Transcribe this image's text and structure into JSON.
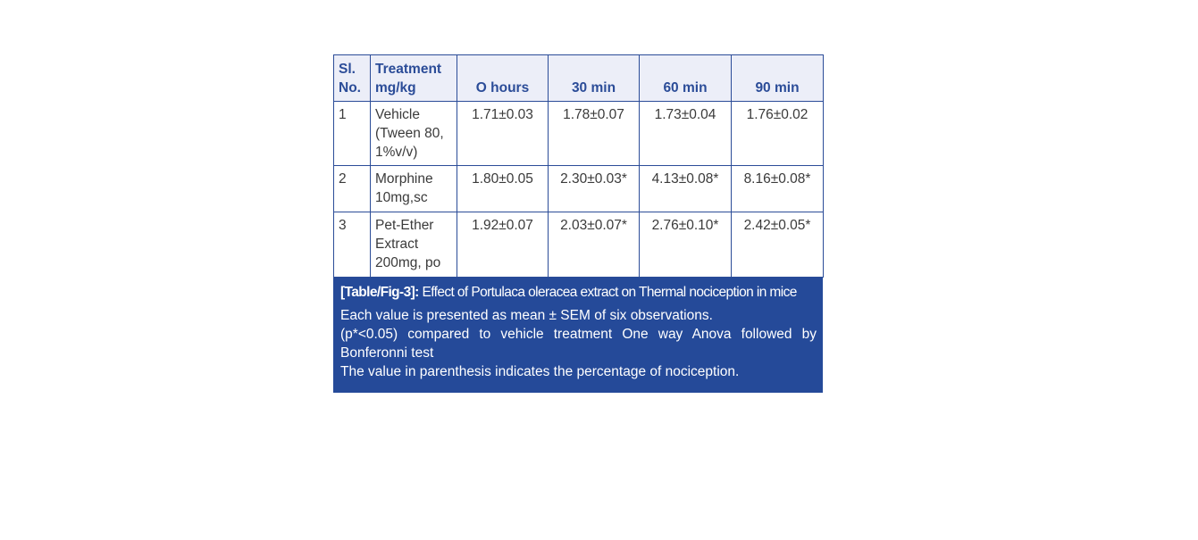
{
  "table": {
    "headers": [
      "Sl. No.",
      "Treatment mg/kg",
      "O hours",
      "30 min",
      "60 min",
      "90 min"
    ],
    "rows": [
      [
        "1",
        "Vehicle (Tween 80, 1%v/v)",
        "1.71±0.03",
        "1.78±0.07",
        "1.73±0.04",
        "1.76±0.02"
      ],
      [
        "2",
        "Morphine 10mg,sc",
        "1.80±0.05",
        "2.30±0.03*",
        "4.13±0.08*",
        "8.16±0.08*"
      ],
      [
        "3",
        "Pet-Ether Extract 200mg, po",
        "1.92±0.07",
        "2.03±0.07*",
        "2.76±0.10*",
        "2.42±0.05*"
      ]
    ]
  },
  "caption": {
    "label": "[Table/Fig-3]:",
    "title": " Effect of Portulaca oleracea extract on Thermal nociception in mice",
    "notes": [
      "Each value is presented as mean ± SEM of six observations.",
      "(p*<0.05) compared to vehicle treatment One way Anova followed by Bonferonni test",
      "The value in parenthesis indicates the percentage of nociception."
    ]
  },
  "colors": {
    "border": "#2b4c98",
    "header_bg": "#eceef8",
    "caption_bg": "#254a99"
  }
}
